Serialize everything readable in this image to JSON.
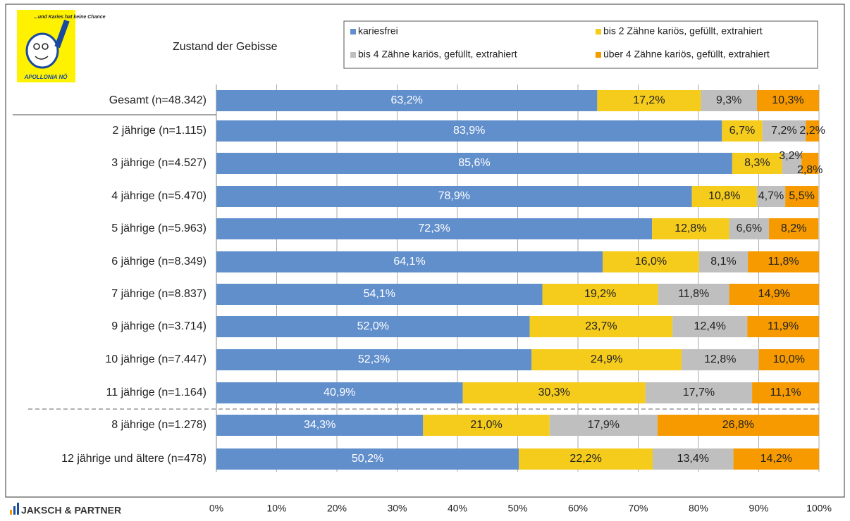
{
  "chart_data": {
    "type": "stacked-bar-horizontal",
    "title": "Zustand der Gebisse",
    "categories": [
      "Gesamt (n=48.342)",
      "2 jährige (n=1.115)",
      "3 jährige (n=4.527)",
      "4 jährige (n=5.470)",
      "5 jährige (n=5.963)",
      "6 jährige (n=8.349)",
      "7 jährige (n=8.837)",
      "9 jährige (n=3.714)",
      "10 jährige (n=7.447)",
      "11 jährige (n=1.164)",
      "8 jährige (n=1.278)",
      "12 jährige und ältere (n=478)"
    ],
    "series": [
      {
        "name": "kariesfrei",
        "color": "#618fcc",
        "values": [
          63.2,
          83.9,
          85.6,
          78.9,
          72.3,
          64.1,
          54.1,
          52.0,
          52.3,
          40.9,
          34.3,
          50.2
        ],
        "value_labels": [
          "63,2%",
          "83,9%",
          "85,6%",
          "78,9%",
          "72,3%",
          "64,1%",
          "54,1%",
          "52,0%",
          "52,3%",
          "40,9%",
          "34,3%",
          "50,2%"
        ]
      },
      {
        "name": "bis 2 Zähne kariös, gefüllt, extrahiert",
        "color": "#f5cb1c",
        "values": [
          17.2,
          6.7,
          8.3,
          10.8,
          12.8,
          16.0,
          19.2,
          23.7,
          24.9,
          30.3,
          21.0,
          22.2
        ],
        "value_labels": [
          "17,2%",
          "6,7%",
          "8,3%",
          "10,8%",
          "12,8%",
          "16,0%",
          "19,2%",
          "23,7%",
          "24,9%",
          "30,3%",
          "21,0%",
          "22,2%"
        ]
      },
      {
        "name": "bis 4 Zähne kariös, gefüllt, extrahiert",
        "color": "#bfbfbf",
        "values": [
          9.3,
          7.2,
          3.2,
          4.7,
          6.6,
          8.1,
          11.8,
          12.4,
          12.8,
          17.7,
          17.9,
          13.4
        ],
        "value_labels": [
          "9,3%",
          "7,2%",
          "3,2%",
          "4,7%",
          "6,6%",
          "8,1%",
          "11,8%",
          "12,4%",
          "12,8%",
          "17,7%",
          "17,9%",
          "13,4%"
        ]
      },
      {
        "name": "über 4 Zähne kariös, gefüllt, extrahiert",
        "color": "#f79a00",
        "values": [
          10.3,
          2.2,
          2.8,
          5.5,
          8.2,
          11.8,
          14.9,
          11.9,
          10.0,
          11.1,
          26.8,
          14.2
        ],
        "value_labels": [
          "10,3%",
          "2,2%",
          "2,8%",
          "5,5%",
          "8,2%",
          "11,8%",
          "14,9%",
          "11,9%",
          "10,0%",
          "11,1%",
          "26,8%",
          "14,2%"
        ]
      }
    ],
    "xlim": [
      0,
      100
    ],
    "xticks": [
      {
        "value": 0,
        "label": "0%"
      },
      {
        "value": 10,
        "label": "10%"
      },
      {
        "value": 20,
        "label": "20%"
      },
      {
        "value": 30,
        "label": "30%"
      },
      {
        "value": 40,
        "label": "40%"
      },
      {
        "value": 50,
        "label": "50%"
      },
      {
        "value": 60,
        "label": "60%"
      },
      {
        "value": 70,
        "label": "70%"
      },
      {
        "value": 80,
        "label": "80%"
      },
      {
        "value": 90,
        "label": "90%"
      },
      {
        "value": 100,
        "label": "100%"
      }
    ],
    "grid": true
  },
  "logo": {
    "slogan": "...und Karies hat keine Chance",
    "name": "APOLLONIA NÖ"
  },
  "footer": "JAKSCH & PARTNER"
}
